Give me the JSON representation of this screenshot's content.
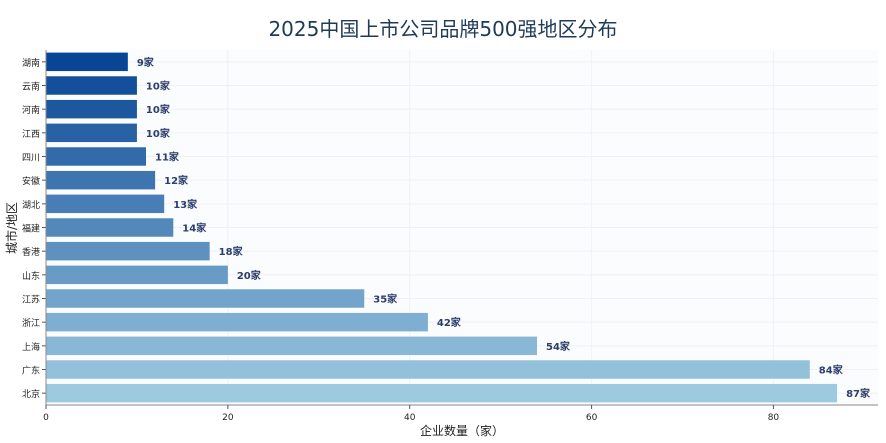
{
  "chart_data": {
    "type": "bar",
    "orientation": "horizontal",
    "title": "2025中国上市公司品牌500强地区分布",
    "xlabel": "企业数量（家）",
    "ylabel": "城市/地区",
    "value_suffix": "家",
    "categories": [
      "湖南",
      "云南",
      "河南",
      "江西",
      "四川",
      "安徽",
      "湖北",
      "福建",
      "香港",
      "山东",
      "江苏",
      "浙江",
      "上海",
      "广东",
      "北京"
    ],
    "values": [
      9,
      10,
      10,
      10,
      11,
      12,
      13,
      14,
      18,
      20,
      35,
      42,
      54,
      84,
      87
    ],
    "xlim": [
      0,
      91.5
    ],
    "xticks": [
      0,
      20,
      40,
      60,
      80
    ],
    "grid": true,
    "colors": {
      "title": "#1f3b57",
      "data_label": "#2c3e6b",
      "gradient_dark": "#084594",
      "gradient_light": "#9ecae1",
      "grid": "#eef1f5"
    }
  }
}
